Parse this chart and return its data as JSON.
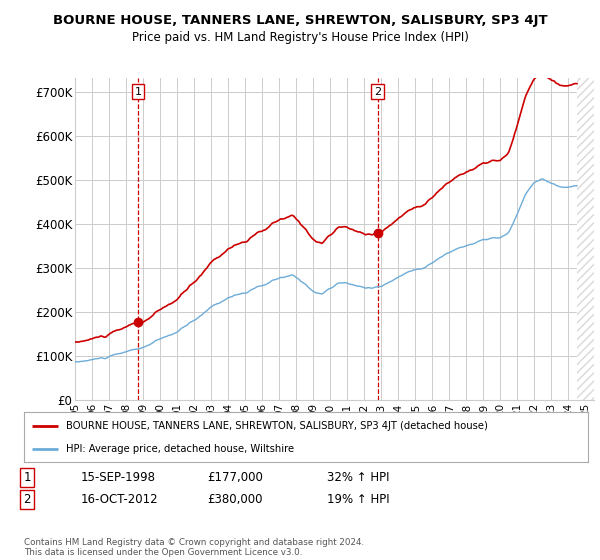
{
  "title": "BOURNE HOUSE, TANNERS LANE, SHREWTON, SALISBURY, SP3 4JT",
  "subtitle": "Price paid vs. HM Land Registry's House Price Index (HPI)",
  "ylabel_ticks": [
    "£0",
    "£100K",
    "£200K",
    "£300K",
    "£400K",
    "£500K",
    "£600K",
    "£700K"
  ],
  "ytick_vals": [
    0,
    100000,
    200000,
    300000,
    400000,
    500000,
    600000,
    700000
  ],
  "ylim": [
    0,
    730000
  ],
  "xlim": [
    1995.0,
    2025.5
  ],
  "sale1": {
    "date_num": 1998.71,
    "price": 177000,
    "label": "1"
  },
  "sale2": {
    "date_num": 2012.79,
    "price": 380000,
    "label": "2"
  },
  "legend_line1": "BOURNE HOUSE, TANNERS LANE, SHREWTON, SALISBURY, SP3 4JT (detached house)",
  "legend_line2": "HPI: Average price, detached house, Wiltshire",
  "table_row1": [
    "1",
    "15-SEP-1998",
    "£177,000",
    "32% ↑ HPI"
  ],
  "table_row2": [
    "2",
    "16-OCT-2012",
    "£380,000",
    "19% ↑ HPI"
  ],
  "footer": "Contains HM Land Registry data © Crown copyright and database right 2024.\nThis data is licensed under the Open Government Licence v3.0.",
  "hpi_color": "#6dacd8",
  "price_color": "#cc0000",
  "vline_color": "#cc0000",
  "grid_color": "#cccccc",
  "bg_color": "#ffffff",
  "forecast_start": 2024.5
}
